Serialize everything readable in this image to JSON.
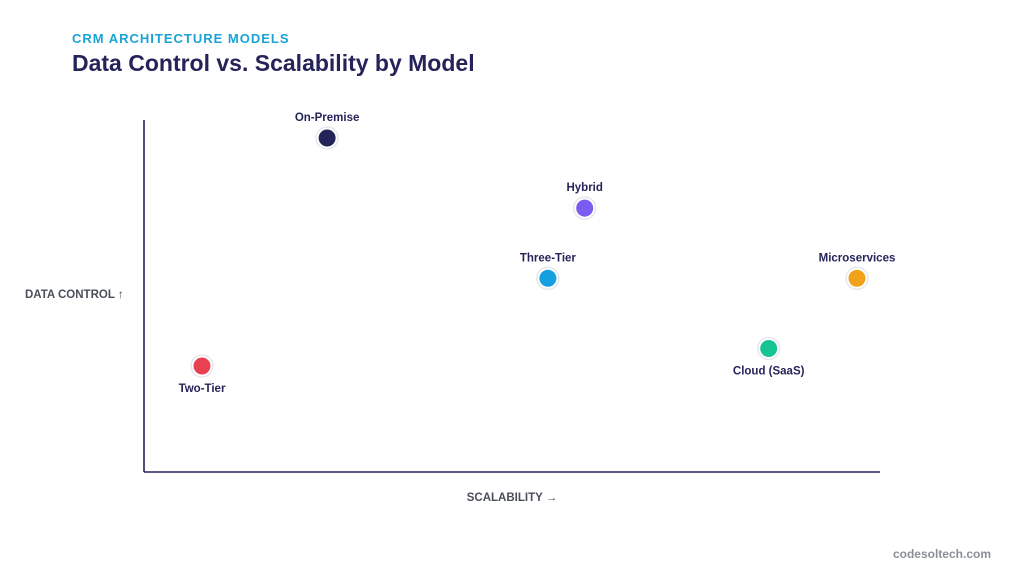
{
  "header": {
    "eyebrow": "CRM ARCHITECTURE MODELS",
    "title": "Data Control vs. Scalability by Model"
  },
  "footer": {
    "site": "codesoltech.com"
  },
  "chart_data": {
    "type": "scatter",
    "title": "Data Control vs. Scalability by Model",
    "xlabel": "SCALABILITY →",
    "ylabel": "DATA CONTROL ↑",
    "xlim": [
      0,
      100
    ],
    "ylim": [
      0,
      100
    ],
    "grid": false,
    "legend": "none",
    "points": [
      {
        "label": "On-Premise",
        "x": 25,
        "y": 95,
        "color": "#24245a",
        "label_position": "above"
      },
      {
        "label": "Hybrid",
        "x": 60,
        "y": 75,
        "color": "#7b5cf0",
        "label_position": "above"
      },
      {
        "label": "Three-Tier",
        "x": 55,
        "y": 55,
        "color": "#14a0e0",
        "label_position": "above"
      },
      {
        "label": "Microservices",
        "x": 97,
        "y": 55,
        "color": "#f0a21a",
        "label_position": "above"
      },
      {
        "label": "Cloud (SaaS)",
        "x": 85,
        "y": 35,
        "color": "#16c493",
        "label_position": "below"
      },
      {
        "label": "Two-Tier",
        "x": 8,
        "y": 30,
        "color": "#e84154",
        "label_position": "below"
      }
    ]
  }
}
